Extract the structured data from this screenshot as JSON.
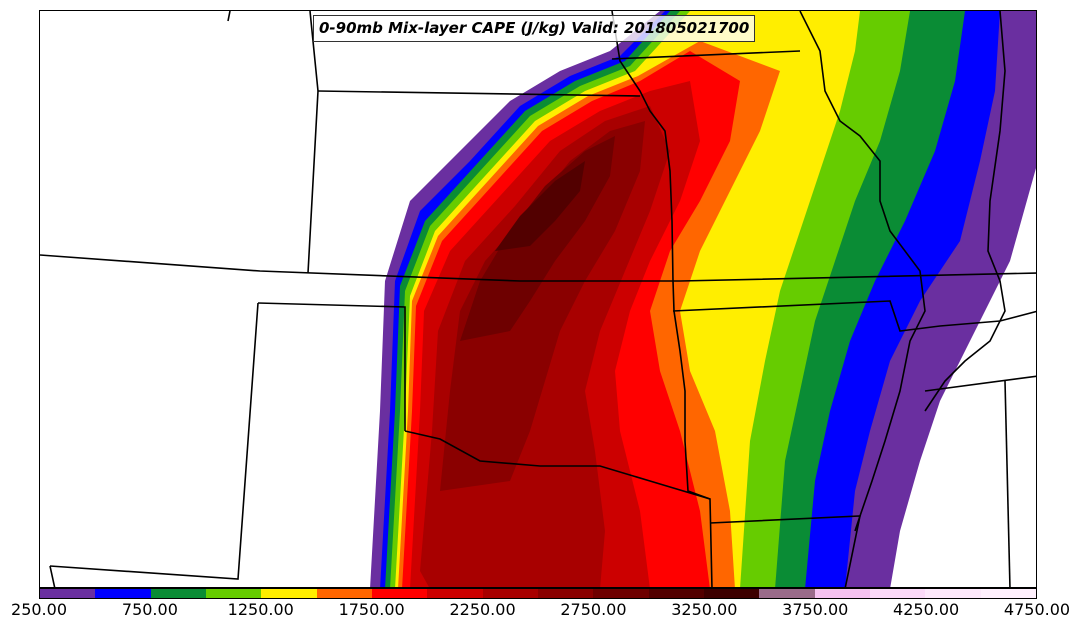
{
  "title": "0-90mb Mix-layer CAPE (J/kg) Valid: 201805021700",
  "colorbar": {
    "colors": [
      "#6a2fa0",
      "#0000ff",
      "#0a8c35",
      "#66cc00",
      "#ffee00",
      "#ff6600",
      "#ff0000",
      "#cc0000",
      "#a80000",
      "#8a0000",
      "#6e0000",
      "#520000",
      "#3c0000",
      "#9a6b8a",
      "#f5c2f0",
      "#fbd9f8",
      "#fde8fb",
      "#fff0fd"
    ],
    "tick_labels": [
      "250.00",
      "750.00",
      "1250.00",
      "1750.00",
      "2250.00",
      "2750.00",
      "3250.00",
      "3750.00",
      "4250.00",
      "4750.00"
    ]
  }
}
